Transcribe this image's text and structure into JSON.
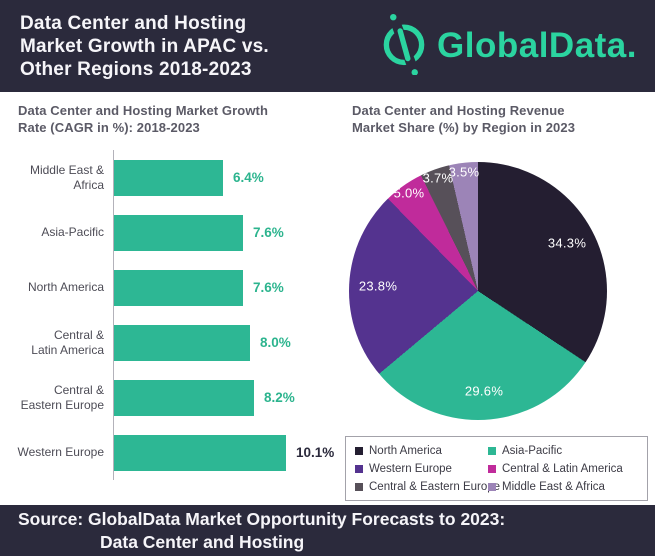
{
  "header": {
    "title": "Data Center and Hosting\nMarket Growth in APAC vs.\nOther Regions 2018-2023",
    "logo_text": "GlobalData."
  },
  "colors": {
    "header_background": "#2b2a3c",
    "logo_teal": "#2bd4a0",
    "bar_teal": "#2db794",
    "value_label_green": "#2cb48e",
    "title_gray": "#5b5a66"
  },
  "chart_data": [
    {
      "type": "bar",
      "orientation": "horizontal",
      "title": "Data Center and Hosting Market Growth\nRate (CAGR in %): 2018-2023",
      "categories": [
        "Middle East &\nAfrica",
        "Asia-Pacific",
        "North America",
        "Central &\nLatin America",
        "Central &\nEastern Europe",
        "Western Europe"
      ],
      "values": [
        6.4,
        7.6,
        7.6,
        8.0,
        8.2,
        10.1
      ],
      "value_labels": [
        "6.4%",
        "7.6%",
        "7.6%",
        "8.0%",
        "8.2%",
        "10.1%"
      ],
      "value_label_colors": [
        "#2cb48e",
        "#2cb48e",
        "#2cb48e",
        "#2cb48e",
        "#2cb48e",
        "#2b2a3c"
      ],
      "bar_color": "#2db794",
      "xlim": [
        0,
        10.1
      ],
      "grid": false,
      "legend_position": "none"
    },
    {
      "type": "pie",
      "title": "Data Center and Hosting Revenue\nMarket Share (%) by Region in 2023",
      "slices": [
        {
          "label": "North America",
          "value": 34.3,
          "display": "34.3%",
          "color": "#241e31"
        },
        {
          "label": "Asia-Pacific",
          "value": 29.6,
          "display": "29.6%",
          "color": "#2db794"
        },
        {
          "label": "Western Europe",
          "value": 23.8,
          "display": "23.8%",
          "color": "#54338f"
        },
        {
          "label": "Central & Latin America",
          "value": 5.0,
          "display": "5.0%",
          "color": "#c02b9b"
        },
        {
          "label": "Central & Eastern Europe",
          "value": 3.7,
          "display": "3.7%",
          "color": "#575059"
        },
        {
          "label": "Middle East & Africa",
          "value": 3.5,
          "display": "3.5%",
          "color": "#9c84b7"
        }
      ],
      "start_angle_deg": 0,
      "direction": "clockwise",
      "legend_position": "bottom"
    }
  ],
  "footer": {
    "line1": "Source: GlobalData Market Opportunity Forecasts to 2023:",
    "line2": "Data Center and Hosting"
  }
}
